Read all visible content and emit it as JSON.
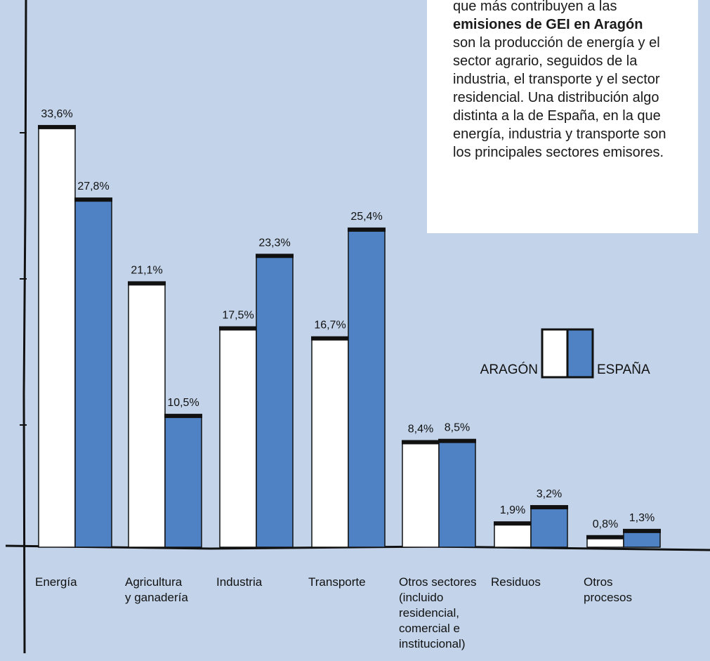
{
  "info": {
    "line1": "que más contribuyen a las",
    "bold": "emisiones de GEI en Aragón",
    "rest": "son la producción de energía y el sector agrario, seguidos de la industria, el transporte y el sector residencial. Una distribución algo distinta a la de España, en la que energía, industria y transporte son los principales sectores emisores."
  },
  "legend": {
    "aragon_label": "ARAGÓN",
    "espana_label": "ESPAÑA"
  },
  "colors": {
    "background": "#c3d4ea",
    "aragon": "#ffffff",
    "espana": "#4f82c4",
    "outline": "#111111"
  },
  "chart_data": {
    "type": "bar",
    "categories": [
      [
        "Energía"
      ],
      [
        "Agricultura",
        "y ganadería"
      ],
      [
        "Industria"
      ],
      [
        "Transporte"
      ],
      [
        "Otros sectores",
        "(incluido",
        "residencial,",
        "comercial e",
        "institucional)"
      ],
      [
        "Residuos"
      ],
      [
        "Otros",
        "procesos"
      ]
    ],
    "series": [
      {
        "name": "ARAGÓN",
        "values": [
          33.6,
          21.1,
          17.5,
          16.7,
          8.4,
          1.9,
          0.8
        ],
        "labels": [
          "33,6%",
          "21,1%",
          "17,5%",
          "16,7%",
          "8,4%",
          "1,9%",
          "0,8%"
        ]
      },
      {
        "name": "ESPAÑA",
        "values": [
          27.8,
          10.5,
          23.3,
          25.4,
          8.5,
          3.2,
          1.3
        ],
        "labels": [
          "27,8%",
          "10,5%",
          "23,3%",
          "25,4%",
          "8,5%",
          "3,2%",
          "1,3%"
        ]
      }
    ],
    "ylim": [
      0,
      35
    ],
    "legend_position": "right",
    "grid": false
  }
}
